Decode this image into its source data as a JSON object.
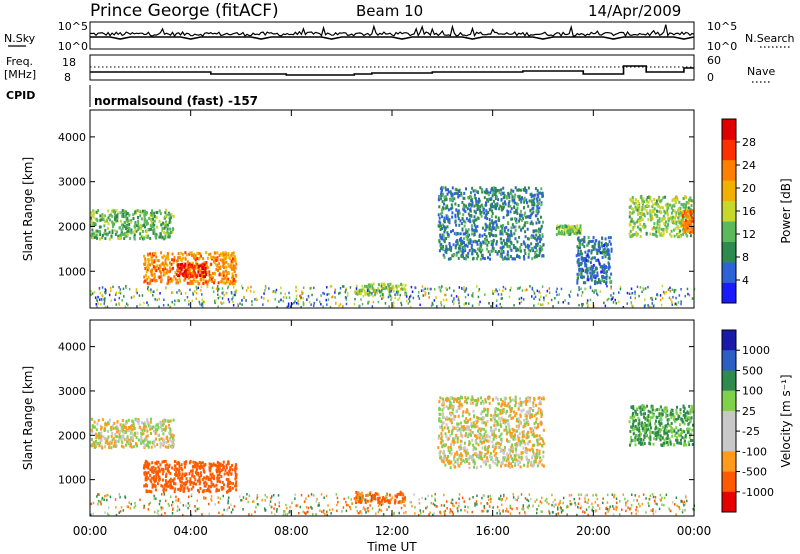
{
  "header": {
    "station": "Prince George (fitACF)",
    "beam": "Beam 10",
    "date": "14/Apr/2009"
  },
  "labels": {
    "nsky": "N.Sky",
    "nsearch": "N.Search",
    "freq": "Freq.",
    "freq_unit": "[MHz]",
    "nave": "Nave",
    "cpid": "CPID",
    "cpid_value": "normalsound (fast) -157",
    "sky_ticks": [
      "10^5",
      "10^0"
    ],
    "search_ticks": [
      "10^5",
      "10^0"
    ],
    "freq_ticks": [
      "18",
      "8"
    ],
    "nave_ticks": [
      "60",
      "0"
    ]
  },
  "colors": {
    "power": [
      "#1a1aff",
      "#2e63d8",
      "#2e8a4e",
      "#5cb85c",
      "#c6d82a",
      "#f2b000",
      "#ff7f00",
      "#ff3000",
      "#e00000"
    ],
    "velocity": [
      "#e60000",
      "#ff5a00",
      "#ff9a1a",
      "#c8c8c8",
      "#c8c8c8",
      "#7fd04a",
      "#2e8a4e",
      "#2b5fc4",
      "#1a1aa8"
    ]
  },
  "chart_data": [
    {
      "type": "heatmap",
      "name": "power",
      "ylabel": "Slant Range [km]",
      "ylim": [
        180,
        4600
      ],
      "yticks": [
        "1000",
        "2000",
        "3000",
        "4000"
      ],
      "xlim": [
        0,
        24
      ],
      "colorbar_label": "Power [dB]",
      "colorbar_ticks": [
        "4",
        "8",
        "12",
        "16",
        "20",
        "24",
        "28"
      ],
      "clim": [
        0,
        32
      ],
      "echo_regions": [
        {
          "t0": 0.0,
          "t1": 3.3,
          "r0": 1750,
          "r1": 2400,
          "value": 12
        },
        {
          "t0": 2.1,
          "t1": 5.8,
          "r0": 750,
          "r1": 1450,
          "value": 22
        },
        {
          "t0": 3.4,
          "t1": 4.6,
          "r0": 900,
          "r1": 1200,
          "value": 29
        },
        {
          "t0": 10.5,
          "t1": 12.5,
          "r0": 500,
          "r1": 750,
          "value": 14
        },
        {
          "t0": 13.8,
          "t1": 18.0,
          "r0": 1300,
          "r1": 2900,
          "value": 8
        },
        {
          "t0": 18.5,
          "t1": 19.5,
          "r0": 1850,
          "r1": 2050,
          "value": 13
        },
        {
          "t0": 19.3,
          "t1": 20.7,
          "r0": 750,
          "r1": 1800,
          "value": 7
        },
        {
          "t0": 21.4,
          "t1": 24.0,
          "r0": 1800,
          "r1": 2700,
          "value": 14
        },
        {
          "t0": 23.5,
          "t1": 24.0,
          "r0": 1900,
          "r1": 2400,
          "value": 24
        }
      ]
    },
    {
      "type": "heatmap",
      "name": "velocity",
      "xlabel": "Time UT",
      "ylabel": "Slant Range [km]",
      "ylim": [
        180,
        4600
      ],
      "yticks": [
        "1000",
        "2000",
        "3000",
        "4000"
      ],
      "xlim": [
        0,
        24
      ],
      "xticks": [
        "00:00",
        "04:00",
        "08:00",
        "12:00",
        "16:00",
        "20:00",
        "00:00"
      ],
      "colorbar_label": "Velocity [m s⁻¹]",
      "colorbar_ticks": [
        "1000",
        "500",
        "100",
        "25",
        "-25",
        "-100",
        "-500",
        "-1000"
      ],
      "echo_regions": [
        {
          "t0": 0.0,
          "t1": 3.3,
          "r0": 1750,
          "r1": 2400,
          "value": 0
        },
        {
          "t0": 2.1,
          "t1": 5.8,
          "r0": 750,
          "r1": 1450,
          "value": -200
        },
        {
          "t0": 10.5,
          "t1": 12.5,
          "r0": 500,
          "r1": 750,
          "value": -150
        },
        {
          "t0": 13.8,
          "t1": 18.0,
          "r0": 1300,
          "r1": 2900,
          "value": 0
        },
        {
          "t0": 21.4,
          "t1": 24.0,
          "r0": 1800,
          "r1": 2700,
          "value": 120
        }
      ]
    }
  ]
}
